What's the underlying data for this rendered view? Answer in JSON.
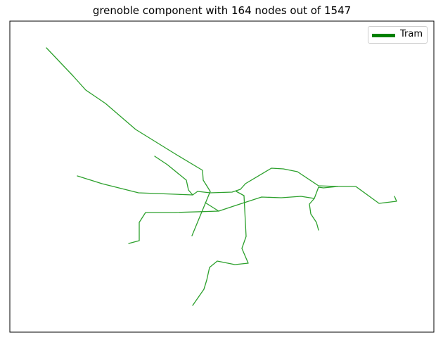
{
  "title": "grenoble component with 164 nodes out of 1547",
  "legend": {
    "label": "Tram",
    "color": "#008000"
  },
  "line_color": "#2ca02c"
}
